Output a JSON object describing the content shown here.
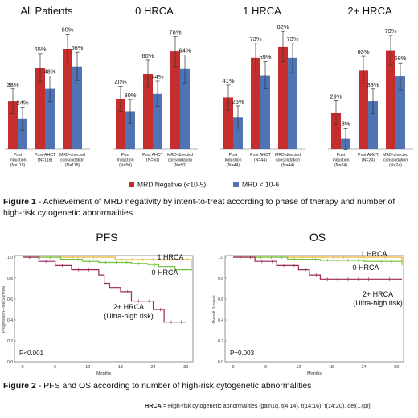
{
  "figure1": {
    "caption_label": "Figure 1",
    "caption_text": " - Achievement of MRD negativity by intent-to-treat according to phase of therapy and number of high-risk cytogenetic abnormalities"
  },
  "figure2": {
    "caption_label": "Figure 2",
    "caption_text": " - PFS and OS according to number of high-risk cytogenetic abnormalities"
  },
  "footnote": {
    "label": "HRCA",
    "text": " = High-risk cytogenetic abnormalities [gain1q, t(4;14), t(14;16), t(14;20), del(17p)]"
  },
  "colors": {
    "mrd5": "#c62e2e",
    "mrd6": "#4f73b3",
    "hrca1": "#e8b535",
    "hrca0": "#6fbf3a",
    "hrca2": "#9b2755"
  },
  "chart_data": [
    {
      "type": "bar",
      "legend_placement": "bottom-center",
      "series_names": [
        "MRD Negative (<10-5)",
        "MRD < 10-6"
      ],
      "groups": [
        {
          "title": "All Patients",
          "categories": [
            "Post Induction (N=118)",
            "Post-AHCT (N=118)",
            "MRD-directed consolidation (N=118)"
          ],
          "labels": [
            [
              "Post",
              "Induction",
              "(N=118)"
            ],
            [
              "Post-AHCT",
              "(N=118)"
            ],
            [
              "MRD-directed",
              "consolidation",
              "(N=118)"
            ]
          ],
          "mrd5": [
            38,
            65,
            80
          ],
          "mrd6": [
            24,
            48,
            66
          ],
          "mrd5_text": [
            "38%",
            "65%",
            "80%"
          ],
          "mrd6_text": [
            "24%",
            "48%",
            "66%"
          ]
        },
        {
          "title": "0 HRCA",
          "categories": [
            "Post Induction (N=50)",
            "Post AHCT (N=50)",
            "MRD-directed consolidation (N=50)"
          ],
          "labels": [
            [
              "Post",
              "Induction",
              "(N=50)"
            ],
            [
              "Post AHCT",
              "(N=50)"
            ],
            [
              "MRD-directed",
              "consolidation",
              "(N=50)"
            ]
          ],
          "mrd5": [
            40,
            60,
            78
          ],
          "mrd6": [
            30,
            44,
            64
          ],
          "mrd5_text": [
            "40%",
            "60%",
            "78%"
          ],
          "mrd6_text": [
            "30%",
            "44%",
            "64%"
          ]
        },
        {
          "title": "1 HRCA",
          "categories": [
            "Post Induction (N=44)",
            "Post AHCT (N=44)",
            "MRD-directed consolidation (N=44)"
          ],
          "labels": [
            [
              "Post",
              "Induction",
              "(N=44)"
            ],
            [
              "Post AHCT",
              "(N=44)"
            ],
            [
              "MRD-directed",
              "consolidation",
              "(N=44)"
            ]
          ],
          "mrd5": [
            41,
            73,
            82
          ],
          "mrd6": [
            25,
            59,
            73
          ],
          "mrd5_text": [
            "41%",
            "73%",
            "82%"
          ],
          "mrd6_text": [
            "25%",
            "59%",
            "73%"
          ]
        },
        {
          "title": "2+ HRCA",
          "categories": [
            "Post Induction (N=24)",
            "Post AHCT (N=24)",
            "MRD-directed consolidation (N=24)"
          ],
          "labels": [
            [
              "Post",
              "Induction",
              "(N=24)"
            ],
            [
              "Post AHCT",
              "(N=24)"
            ],
            [
              "MRD-directed",
              "consolidation",
              "(N=24)"
            ]
          ],
          "mrd5": [
            29,
            63,
            79
          ],
          "mrd6": [
            8,
            38,
            58
          ],
          "mrd5_text": [
            "29%",
            "63%",
            "79%"
          ],
          "mrd6_text": [
            "8%",
            "38%",
            "58%"
          ]
        }
      ],
      "ylim": [
        0,
        100
      ]
    },
    {
      "type": "line",
      "title": "PFS",
      "xlabel": "Months",
      "ylabel": "Progression-Free Survival",
      "xlim": [
        0,
        31
      ],
      "ylim": [
        0,
        1
      ],
      "xticks": [
        0,
        6,
        12,
        18,
        24,
        30
      ],
      "yticks": [
        0,
        0.2,
        0.4,
        0.6,
        0.8,
        1.0
      ],
      "ytick_labels": [
        "0.0",
        "0.2",
        "0.4",
        "0.6",
        "0.8",
        "1.0"
      ],
      "pvalue": "P<0.001",
      "series": [
        {
          "name": "1 HRCA",
          "x": [
            0,
            8,
            17,
            29,
            31
          ],
          "y": [
            1.0,
            1.0,
            0.977,
            0.977,
            0.88
          ]
        },
        {
          "name": "0 HRCA",
          "x": [
            0,
            7,
            11,
            14,
            20,
            23,
            25,
            28,
            31
          ],
          "y": [
            1.0,
            0.98,
            0.96,
            0.95,
            0.94,
            0.93,
            0.91,
            0.88,
            0.87
          ]
        },
        {
          "name": "2+ HRCA",
          "x": [
            0,
            3,
            6,
            9,
            14,
            15,
            16,
            18,
            20,
            24,
            26,
            30
          ],
          "y": [
            1.0,
            0.96,
            0.92,
            0.88,
            0.83,
            0.75,
            0.71,
            0.67,
            0.58,
            0.5,
            0.38,
            0.38
          ]
        }
      ],
      "annotations": [
        [
          "1 HRCA"
        ],
        [
          "0 HRCA"
        ],
        [
          "2+ HRCA",
          "(Ultra-high risk)"
        ]
      ]
    },
    {
      "type": "line",
      "title": "OS",
      "xlabel": "Months",
      "ylabel": "Overall Survival",
      "xlim": [
        0,
        31
      ],
      "ylim": [
        0,
        1
      ],
      "xticks": [
        0,
        6,
        12,
        18,
        24,
        30
      ],
      "yticks": [
        0,
        0.2,
        0.4,
        0.6,
        0.8,
        1.0
      ],
      "ytick_labels": [
        "0.0",
        "0.2",
        "0.4",
        "0.6",
        "0.8",
        "1.0"
      ],
      "pvalue": "P=0.003",
      "series": [
        {
          "name": "1 HRCA",
          "x": [
            0,
            30,
            31
          ],
          "y": [
            1.0,
            1.0,
            0.92
          ]
        },
        {
          "name": "0 HRCA",
          "x": [
            0,
            10,
            16,
            24,
            31
          ],
          "y": [
            1.0,
            0.98,
            0.97,
            0.96,
            0.95
          ]
        },
        {
          "name": "2+ HRCA",
          "x": [
            0,
            4,
            8,
            12,
            14,
            16,
            31
          ],
          "y": [
            1.0,
            0.96,
            0.92,
            0.88,
            0.83,
            0.79,
            0.79
          ]
        }
      ],
      "annotations": [
        [
          "1 HRCA"
        ],
        [
          "0 HRCA"
        ],
        [
          "2+ HRCA",
          "(Ultra-high risk)"
        ]
      ]
    }
  ]
}
